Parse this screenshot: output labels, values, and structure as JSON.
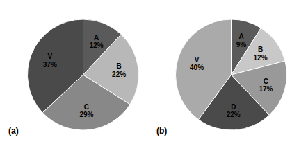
{
  "chart_data": [
    {
      "type": "pie",
      "title": "(a)",
      "categories": [
        "A",
        "B",
        "C",
        "V"
      ],
      "values": [
        12,
        22,
        29,
        37
      ],
      "value_labels": [
        "12%",
        "22%",
        "29%",
        "37%"
      ],
      "colors": [
        "#5a5a5a",
        "#b8b8b8",
        "#888888",
        "#4a4a4a"
      ],
      "data_labels": true
    },
    {
      "type": "pie",
      "title": "(b)",
      "categories": [
        "A",
        "B",
        "C",
        "D",
        "V"
      ],
      "values": [
        9,
        12,
        17,
        22,
        40
      ],
      "value_labels": [
        "9%",
        "12%",
        "17%",
        "22%",
        "40%"
      ],
      "colors": [
        "#5a5a5a",
        "#c8c8c8",
        "#999999",
        "#4a4a4a",
        "#aaaaaa"
      ],
      "data_labels": true
    }
  ]
}
